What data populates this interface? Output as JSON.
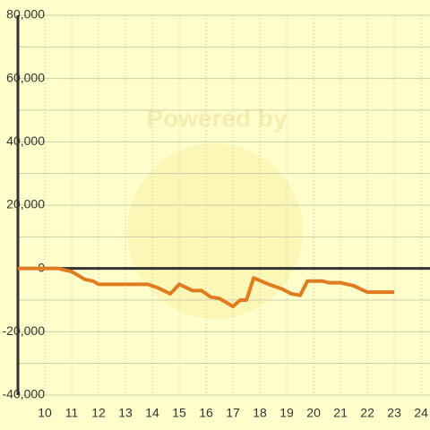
{
  "chart_data": {
    "type": "line",
    "watermark": "Powered by",
    "x": [
      9,
      10.5,
      11,
      11.5,
      11.8,
      12,
      13.83,
      14.17,
      14.67,
      15,
      15.5,
      15.83,
      16.17,
      16.5,
      17,
      17.27,
      17.5,
      17.77,
      18.33,
      18.83,
      19.17,
      19.5,
      19.77,
      20.33,
      20.57,
      21,
      21.5,
      22,
      23
    ],
    "series": [
      {
        "color": "#e07b20",
        "values": [
          0,
          0,
          -1000,
          -3500,
          -4000,
          -5000,
          -5000,
          -6000,
          -8000,
          -5000,
          -7000,
          -7000,
          -9000,
          -9500,
          -12000,
          -10000,
          -10000,
          -3000,
          -5000,
          -6500,
          -8000,
          -8500,
          -4000,
          -4000,
          -4500,
          -4500,
          -5500,
          -7500,
          -7500
        ]
      }
    ],
    "xlim": [
      9,
      24.33
    ],
    "xticks": [
      10,
      11,
      12,
      13,
      14,
      15,
      16,
      17,
      18,
      19,
      20,
      21,
      22,
      23,
      24
    ],
    "ylim": [
      -40000,
      80000
    ],
    "yticks": [
      {
        "value": -40000,
        "label": "-40,000"
      },
      {
        "value": -20000,
        "label": "-20,000"
      },
      0,
      {
        "value": 20000,
        "label": "20,000"
      },
      {
        "value": 40000,
        "label": "40,000"
      },
      {
        "value": 60000,
        "label": "60,000"
      },
      {
        "value": 80000,
        "label": "80,000"
      }
    ],
    "minor_yticks": [
      -30000,
      -10000,
      10000,
      30000,
      50000,
      70000
    ],
    "grid": true
  }
}
